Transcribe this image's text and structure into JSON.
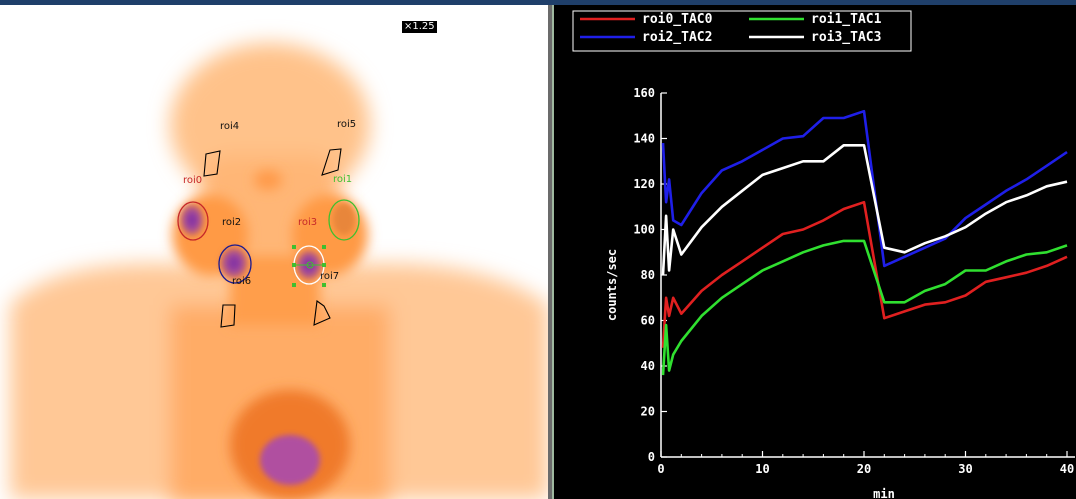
{
  "image_view": {
    "zoom_label": "×1.25",
    "rois": [
      {
        "id": "roi0",
        "label": "roi0",
        "color": "#c62828"
      },
      {
        "id": "roi1",
        "label": "roi1",
        "color": "#3fbf2f"
      },
      {
        "id": "roi2",
        "label": "roi2",
        "color": "#111111"
      },
      {
        "id": "roi3",
        "label": "roi3",
        "color": "#c62828"
      },
      {
        "id": "roi4",
        "label": "roi4",
        "color": "#111111"
      },
      {
        "id": "roi5",
        "label": "roi5",
        "color": "#111111"
      },
      {
        "id": "roi6",
        "label": "roi6",
        "color": "#111111"
      },
      {
        "id": "roi7",
        "label": "roi7",
        "color": "#111111"
      }
    ]
  },
  "chart_data": {
    "type": "line",
    "xlabel": "min",
    "ylabel": "counts/sec",
    "xlim": [
      0,
      40
    ],
    "ylim": [
      0,
      160
    ],
    "x_ticks": [
      0,
      10,
      20,
      30,
      40
    ],
    "y_ticks": [
      0,
      20,
      40,
      60,
      80,
      100,
      120,
      140,
      160
    ],
    "legend_position": "top",
    "series": [
      {
        "name": "roi0_TAC0",
        "color": "#e02020",
        "x": [
          0.2,
          0.5,
          0.8,
          1.2,
          2,
          4,
          6,
          8,
          10,
          12,
          14,
          16,
          18,
          20,
          22,
          24,
          26,
          28,
          30,
          32,
          34,
          36,
          38,
          40
        ],
        "y": [
          48,
          70,
          62,
          70,
          63,
          73,
          80,
          86,
          92,
          98,
          100,
          104,
          109,
          112,
          61,
          64,
          67,
          68,
          71,
          77,
          79,
          81,
          84,
          88
        ]
      },
      {
        "name": "roi1_TAC1",
        "color": "#30e030",
        "x": [
          0.2,
          0.5,
          0.8,
          1.2,
          2,
          4,
          6,
          8,
          10,
          12,
          14,
          16,
          18,
          20,
          22,
          24,
          26,
          28,
          30,
          32,
          34,
          36,
          38,
          40
        ],
        "y": [
          36,
          58,
          38,
          45,
          51,
          62,
          70,
          76,
          82,
          86,
          90,
          93,
          95,
          95,
          68,
          68,
          73,
          76,
          82,
          82,
          86,
          89,
          90,
          93
        ]
      },
      {
        "name": "roi2_TAC2",
        "color": "#1f1fe8",
        "x": [
          0.2,
          0.5,
          0.8,
          1.2,
          2,
          4,
          6,
          8,
          10,
          12,
          14,
          16,
          18,
          20,
          22,
          24,
          26,
          28,
          30,
          32,
          34,
          36,
          38,
          40
        ],
        "y": [
          138,
          112,
          122,
          104,
          102,
          116,
          126,
          130,
          135,
          140,
          141,
          149,
          149,
          152,
          84,
          88,
          92,
          96,
          105,
          111,
          117,
          122,
          128,
          134
        ]
      },
      {
        "name": "roi3_TAC3",
        "color": "#ffffff",
        "x": [
          0.2,
          0.5,
          0.8,
          1.2,
          2,
          4,
          6,
          8,
          10,
          12,
          14,
          16,
          18,
          20,
          22,
          24,
          26,
          28,
          30,
          32,
          34,
          36,
          38,
          40
        ],
        "y": [
          80,
          106,
          82,
          100,
          89,
          101,
          110,
          117,
          124,
          127,
          130,
          130,
          137,
          137,
          92,
          90,
          94,
          97,
          101,
          107,
          112,
          115,
          119,
          121
        ]
      }
    ]
  }
}
